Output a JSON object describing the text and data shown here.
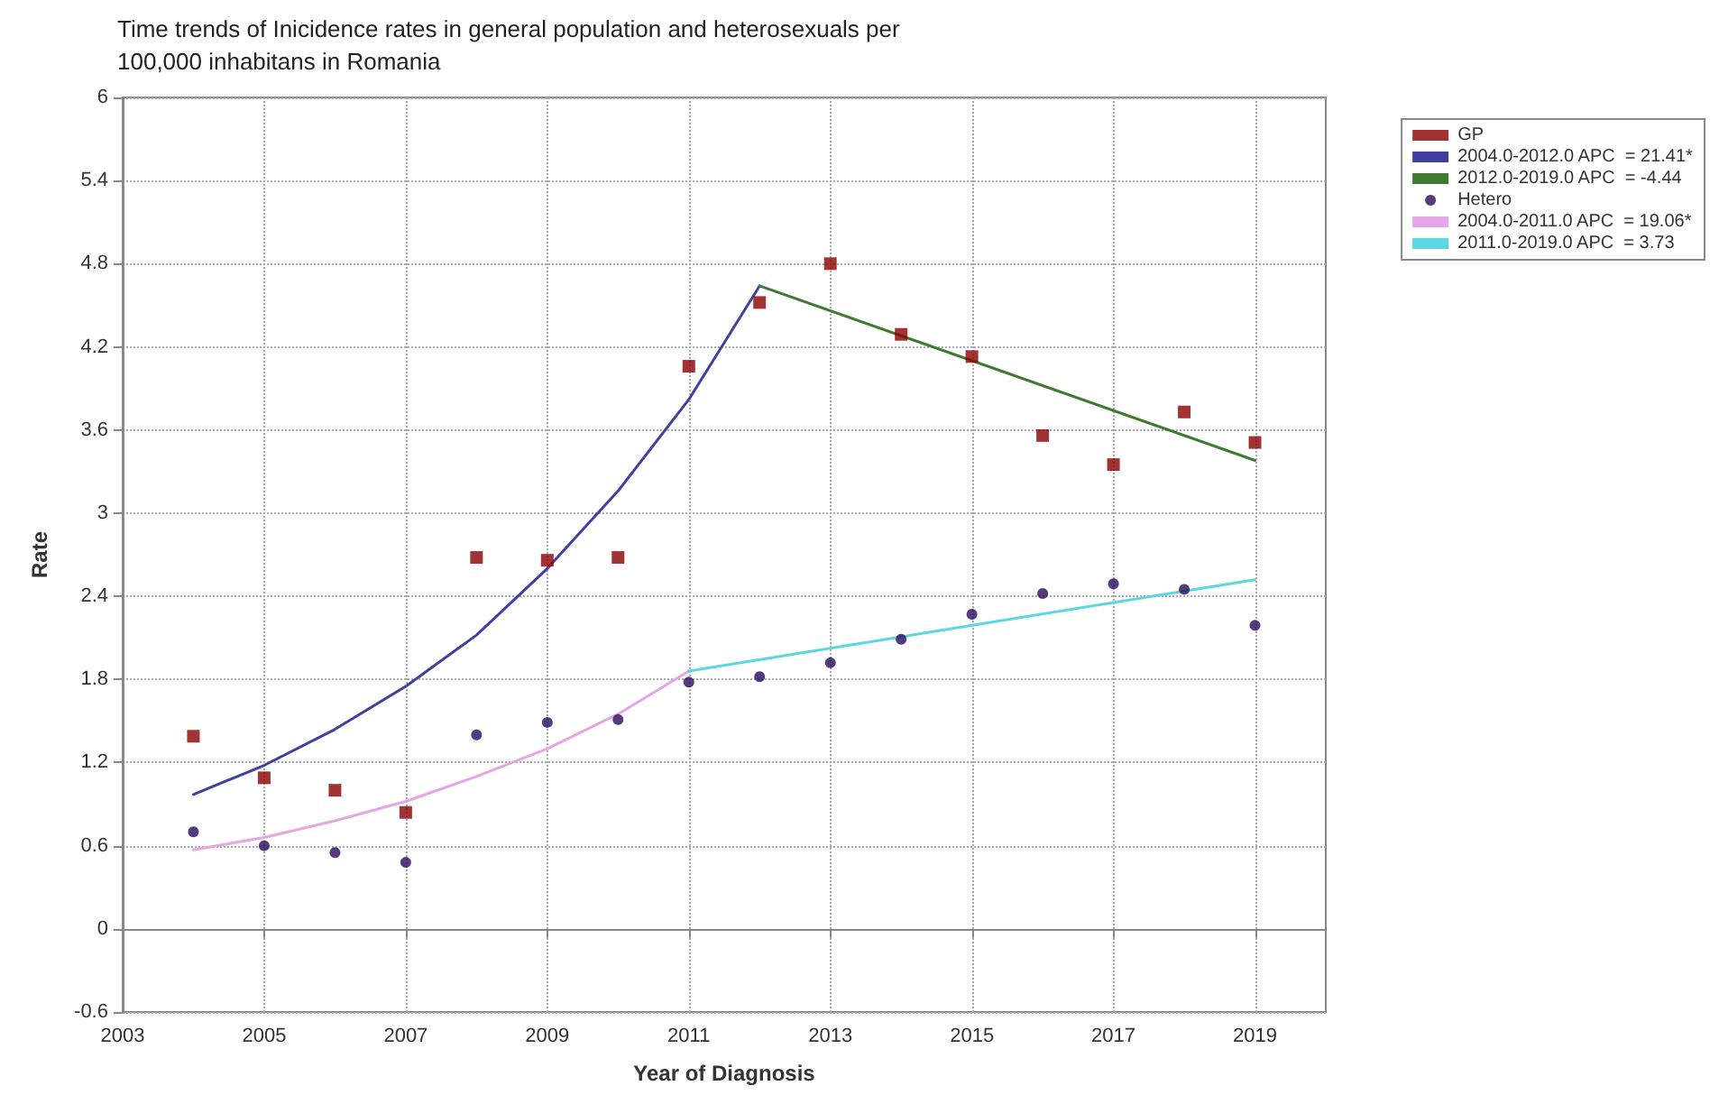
{
  "chart_data": {
    "type": "scatter",
    "title": "Time trends of Inicidence rates in general population and heterosexuals per 100,000 inhabitans in Romania",
    "xlabel": "Year of Diagnosis",
    "ylabel": "Rate",
    "xlim": [
      2003,
      2020
    ],
    "xticks": [
      2003,
      2005,
      2007,
      2009,
      2011,
      2013,
      2015,
      2017,
      2019
    ],
    "ylim": [
      -0.6,
      6
    ],
    "yticks": [
      -0.6,
      0,
      0.6,
      1.2,
      1.8,
      2.4,
      3,
      3.6,
      4.2,
      4.8,
      5.4,
      6
    ],
    "grid": true,
    "legend": "top right",
    "series": [
      {
        "name": "GP",
        "type": "scatter",
        "marker": "square",
        "color": "#8b0000",
        "x": [
          2004,
          2005,
          2006,
          2007,
          2008,
          2009,
          2010,
          2011,
          2012,
          2013,
          2014,
          2015,
          2016,
          2017,
          2018,
          2019
        ],
        "values": [
          1.39,
          1.09,
          1.0,
          0.84,
          2.68,
          2.66,
          2.68,
          4.06,
          4.52,
          4.8,
          4.29,
          4.13,
          3.56,
          3.35,
          3.73,
          3.51
        ]
      },
      {
        "name": "2004.0-2012.0 APC  = 21.41*",
        "type": "line",
        "marker": "none",
        "color": "#4040a0",
        "x": [
          2004,
          2005,
          2006,
          2007,
          2008,
          2009,
          2010,
          2011,
          2012
        ],
        "values": [
          0.97,
          1.18,
          1.44,
          1.75,
          2.12,
          2.6,
          3.16,
          3.82,
          4.64
        ]
      },
      {
        "name": "2012.0-2019.0 APC  = -4.44",
        "type": "line",
        "marker": "none",
        "color": "#3f7a30",
        "x": [
          2012,
          2019
        ],
        "values": [
          4.64,
          3.38
        ]
      },
      {
        "name": "Hetero",
        "type": "scatter",
        "marker": "circle",
        "color": "#2a0a5e",
        "x": [
          2004,
          2005,
          2006,
          2007,
          2008,
          2009,
          2010,
          2011,
          2012,
          2013,
          2014,
          2015,
          2016,
          2017,
          2018,
          2019
        ],
        "values": [
          0.7,
          0.6,
          0.55,
          0.48,
          1.4,
          1.49,
          1.51,
          1.78,
          1.82,
          1.92,
          2.09,
          2.27,
          2.42,
          2.49,
          2.45,
          2.19
        ]
      },
      {
        "name": "2004.0-2011.0 APC  = 19.06*",
        "type": "line",
        "marker": "none",
        "color": "#e4a6e4",
        "x": [
          2004,
          2005,
          2006,
          2007,
          2008,
          2009,
          2010,
          2011
        ],
        "values": [
          0.57,
          0.66,
          0.78,
          0.92,
          1.1,
          1.3,
          1.55,
          1.86
        ]
      },
      {
        "name": "2011.0-2019.0 APC  = 3.73",
        "type": "line",
        "marker": "none",
        "color": "#5cd6e0",
        "x": [
          2011,
          2019
        ],
        "values": [
          1.86,
          2.52
        ]
      }
    ]
  }
}
